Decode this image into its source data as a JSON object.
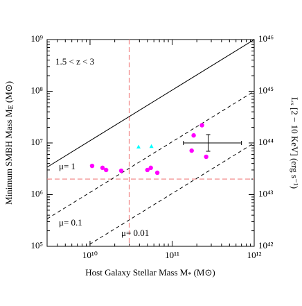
{
  "chart_data": {
    "type": "scatter",
    "log_x": true,
    "log_y": true,
    "xlim": [
      3000000000,
      1000000000000
    ],
    "ylim": [
      100000,
      1000000000
    ],
    "y2lim": [
      1e+42,
      1e+46
    ],
    "xticks": [
      {
        "value": 10000000000,
        "label": "10¹⁰"
      },
      {
        "value": 100000000000,
        "label": "10¹¹"
      },
      {
        "value": 1000000000000,
        "label": "10¹²"
      }
    ],
    "yticks": [
      {
        "value": 100000,
        "label": "10⁵"
      },
      {
        "value": 1000000,
        "label": "10⁶"
      },
      {
        "value": 10000000,
        "label": "10⁷"
      },
      {
        "value": 100000000,
        "label": "10⁸"
      },
      {
        "value": 1000000000,
        "label": "10⁹"
      }
    ],
    "y2ticks": [
      {
        "value": 1e+42,
        "label": "10⁴²"
      },
      {
        "value": 1e+43,
        "label": "10⁴³"
      },
      {
        "value": 1e+44,
        "label": "10⁴⁴"
      },
      {
        "value": 1e+45,
        "label": "10⁴⁵"
      },
      {
        "value": 1e+46,
        "label": "10⁴⁶"
      }
    ],
    "xlabel": {
      "text": "Host Galaxy Stellar Mass M",
      "sub": "*",
      "unit": " (M⊙)"
    },
    "ylabel": {
      "text": "Minimum SMBH Mass M",
      "sub": "E",
      "unit": " (M⊙)"
    },
    "y2label": "Lₓ [2 − 10 KeV] (erg s⁻¹)",
    "annotation": "1.5 < z < 3",
    "lines": [
      {
        "label": "μ= 1",
        "style": "solid",
        "color": "#000000",
        "x": [
          3000000000,
          1000000000000
        ],
        "values": [
          3400000,
          1000000000
        ]
      },
      {
        "label": "μ= 0.1",
        "style": "dashed",
        "color": "#000000",
        "x": [
          3000000000,
          1000000000000
        ],
        "values": [
          340000,
          100000000
        ]
      },
      {
        "label": "μ= 0.01",
        "style": "dashed",
        "color": "#000000",
        "x": [
          3000000000,
          1000000000000
        ],
        "values": [
          34000,
          10000000
        ]
      }
    ],
    "hlines": [
      2000000
    ],
    "vlines": [
      30000000000
    ],
    "ref_color": "#f08080",
    "series": [
      {
        "marker": "circle",
        "color": "#ff00ff",
        "x": [
          10600000000,
          14200000000,
          15700000000,
          24000000000,
          50000000000,
          55000000000,
          66000000000,
          173000000000,
          183000000000,
          231000000000,
          260000000000
        ],
        "values": [
          3600000,
          3300000,
          3000000,
          2900000,
          3000000,
          3300000,
          2650000,
          7100000,
          14000000,
          22000000,
          5400000
        ]
      },
      {
        "marker": "triangle",
        "color": "#00ffff",
        "x": [
          39000000000,
          56000000000
        ],
        "values": [
          8300000,
          8500000
        ]
      }
    ],
    "error_point": {
      "x": 275000000000,
      "value": 10000000,
      "x_low": 137000000000,
      "x_high": 700000000000,
      "y_low": 6900000,
      "y_high": 14500000,
      "color": "#000000"
    }
  }
}
